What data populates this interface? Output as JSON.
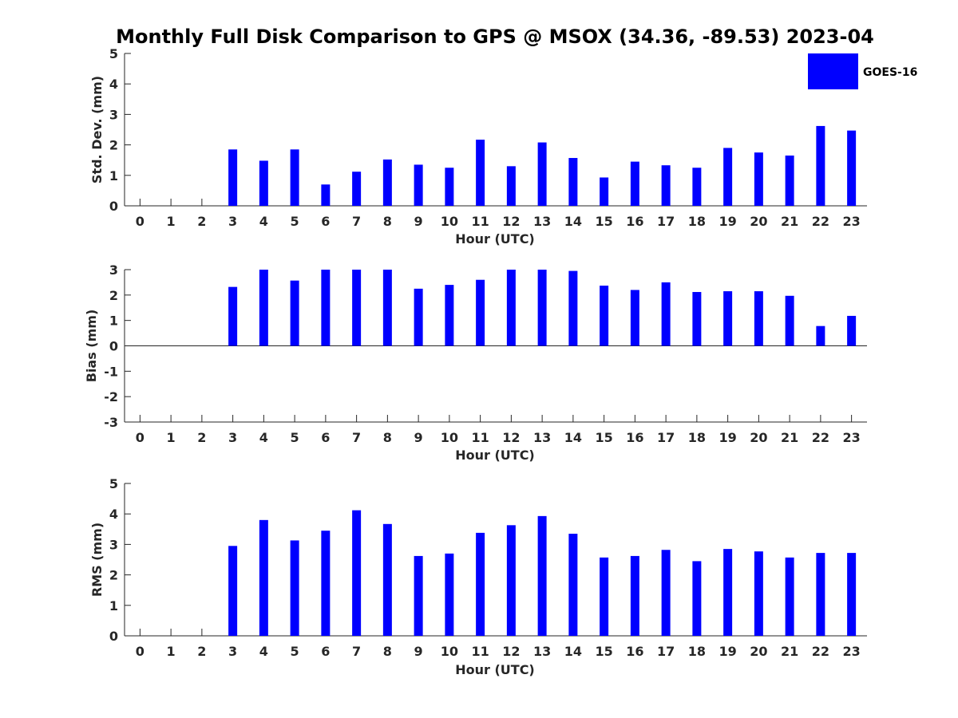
{
  "title": "Monthly Full Disk Comparison to GPS @ MSOX (34.36, -89.53) 2023-04",
  "legend": {
    "label": "GOES-16",
    "color": "#0000ff"
  },
  "colors": {
    "bar": "#0000ff",
    "axis": "#262626"
  },
  "chart_data": [
    {
      "type": "bar",
      "xlabel": "Hour (UTC)",
      "ylabel": "Std. Dev. (mm)",
      "categories": [
        "0",
        "1",
        "2",
        "3",
        "4",
        "5",
        "6",
        "7",
        "8",
        "9",
        "10",
        "11",
        "12",
        "13",
        "14",
        "15",
        "16",
        "17",
        "18",
        "19",
        "20",
        "21",
        "22",
        "23"
      ],
      "x": [
        0,
        1,
        2,
        3,
        4,
        5,
        6,
        7,
        8,
        9,
        10,
        11,
        12,
        13,
        14,
        15,
        16,
        17,
        18,
        19,
        20,
        21,
        22,
        23
      ],
      "ylim": [
        0,
        5
      ],
      "yticks": [
        "0",
        "1",
        "2",
        "3",
        "4",
        "5"
      ],
      "series": [
        {
          "name": "GOES-16",
          "values": [
            null,
            null,
            null,
            1.85,
            1.48,
            1.85,
            0.7,
            1.12,
            1.52,
            1.35,
            1.25,
            2.17,
            1.3,
            2.08,
            1.57,
            0.93,
            1.45,
            1.33,
            1.25,
            1.9,
            1.75,
            1.65,
            2.62,
            2.47
          ]
        }
      ],
      "legend": "top-right",
      "grid": false
    },
    {
      "type": "bar",
      "xlabel": "Hour (UTC)",
      "ylabel": "Bias (mm)",
      "categories": [
        "0",
        "1",
        "2",
        "3",
        "4",
        "5",
        "6",
        "7",
        "8",
        "9",
        "10",
        "11",
        "12",
        "13",
        "14",
        "15",
        "16",
        "17",
        "18",
        "19",
        "20",
        "21",
        "22",
        "23"
      ],
      "x": [
        0,
        1,
        2,
        3,
        4,
        5,
        6,
        7,
        8,
        9,
        10,
        11,
        12,
        13,
        14,
        15,
        16,
        17,
        18,
        19,
        20,
        21,
        22,
        23
      ],
      "ylim": [
        -3,
        3
      ],
      "yticks": [
        "-3",
        "-2",
        "-1",
        "0",
        "1",
        "2",
        "3"
      ],
      "series": [
        {
          "name": "GOES-16",
          "values": [
            null,
            null,
            null,
            2.32,
            3.0,
            2.57,
            3.0,
            3.0,
            3.0,
            2.25,
            2.4,
            2.6,
            3.0,
            3.0,
            2.95,
            2.37,
            2.2,
            2.5,
            2.12,
            2.15,
            2.15,
            1.97,
            0.78,
            1.18
          ]
        }
      ],
      "grid": false
    },
    {
      "type": "bar",
      "xlabel": "Hour (UTC)",
      "ylabel": "RMS (mm)",
      "categories": [
        "0",
        "1",
        "2",
        "3",
        "4",
        "5",
        "6",
        "7",
        "8",
        "9",
        "10",
        "11",
        "12",
        "13",
        "14",
        "15",
        "16",
        "17",
        "18",
        "19",
        "20",
        "21",
        "22",
        "23"
      ],
      "x": [
        0,
        1,
        2,
        3,
        4,
        5,
        6,
        7,
        8,
        9,
        10,
        11,
        12,
        13,
        14,
        15,
        16,
        17,
        18,
        19,
        20,
        21,
        22,
        23
      ],
      "ylim": [
        0,
        5
      ],
      "yticks": [
        "0",
        "1",
        "2",
        "3",
        "4",
        "5"
      ],
      "series": [
        {
          "name": "GOES-16",
          "values": [
            null,
            null,
            null,
            2.95,
            3.8,
            3.13,
            3.45,
            4.12,
            3.67,
            2.62,
            2.7,
            3.38,
            3.63,
            3.93,
            3.35,
            2.57,
            2.62,
            2.82,
            2.45,
            2.85,
            2.77,
            2.57,
            2.72,
            2.72
          ]
        }
      ],
      "grid": false
    }
  ]
}
